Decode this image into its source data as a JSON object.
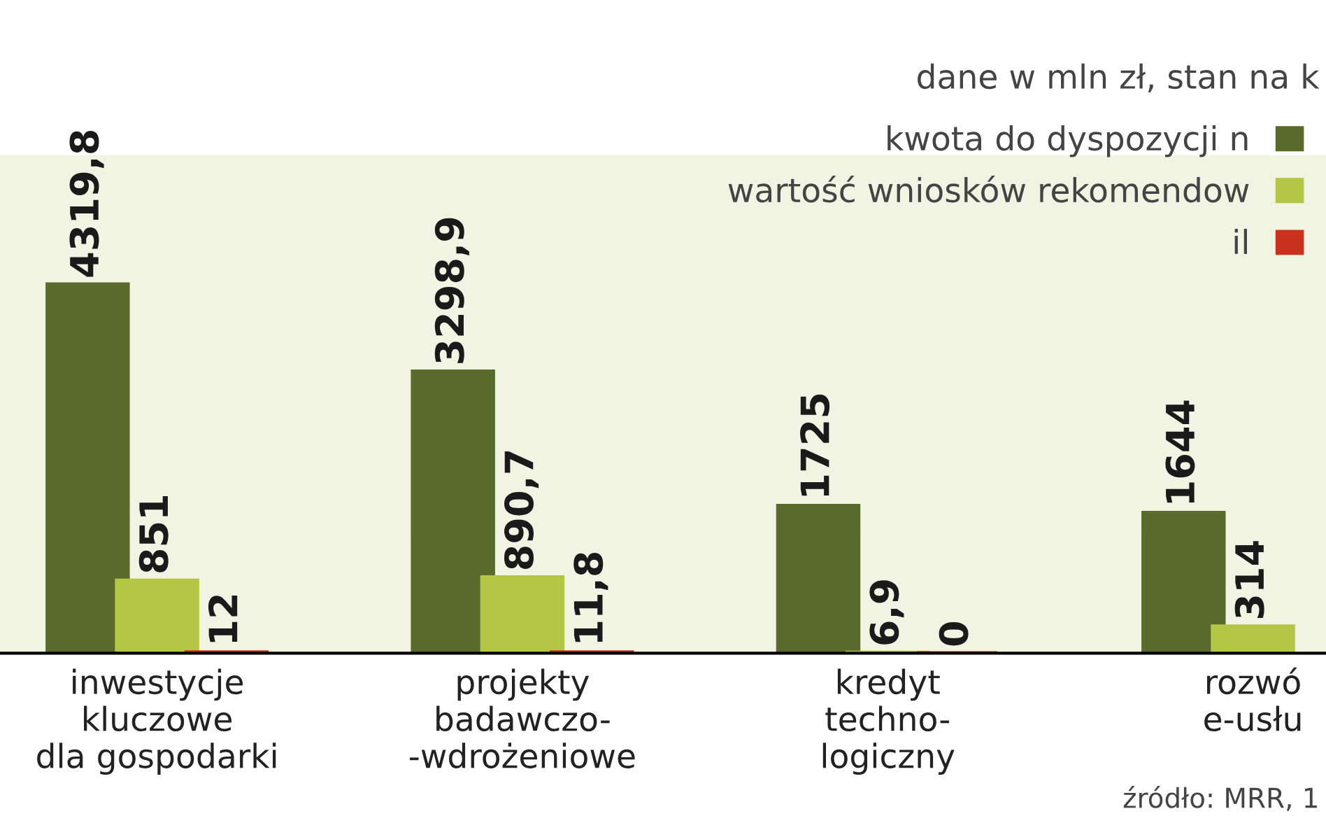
{
  "chart_data": {
    "type": "bar",
    "categories": [
      "inwestycje\nkluczowe\ndla gospodarki",
      "projekty\nbadawczo-\n-wdrożeniowe",
      "kredyt\ntechno-\nlogiczny",
      "rozwó\ne-usłu"
    ],
    "series": [
      {
        "name": "kwota do dyspozycji n",
        "color": "#5a6a2c",
        "values": [
          4319.8,
          3298.9,
          1725,
          1644
        ],
        "value_labels": [
          "4319,8",
          "3298,9",
          "1725",
          "1644"
        ]
      },
      {
        "name": "wartość wniosków rekomendow",
        "color": "#b3c744",
        "values": [
          851,
          890.7,
          6.9,
          314
        ],
        "value_labels": [
          "851",
          "890,7",
          "6,9",
          "314"
        ]
      },
      {
        "name": "il",
        "color": "#c9321f",
        "values": [
          12,
          11.8,
          0,
          null
        ],
        "value_labels": [
          "12",
          "11,8",
          "0",
          null
        ]
      }
    ],
    "annotations": [
      "dane w mln zł, stan na k",
      "źródło: MRR, 1"
    ],
    "legend": "top right",
    "grid": false
  }
}
